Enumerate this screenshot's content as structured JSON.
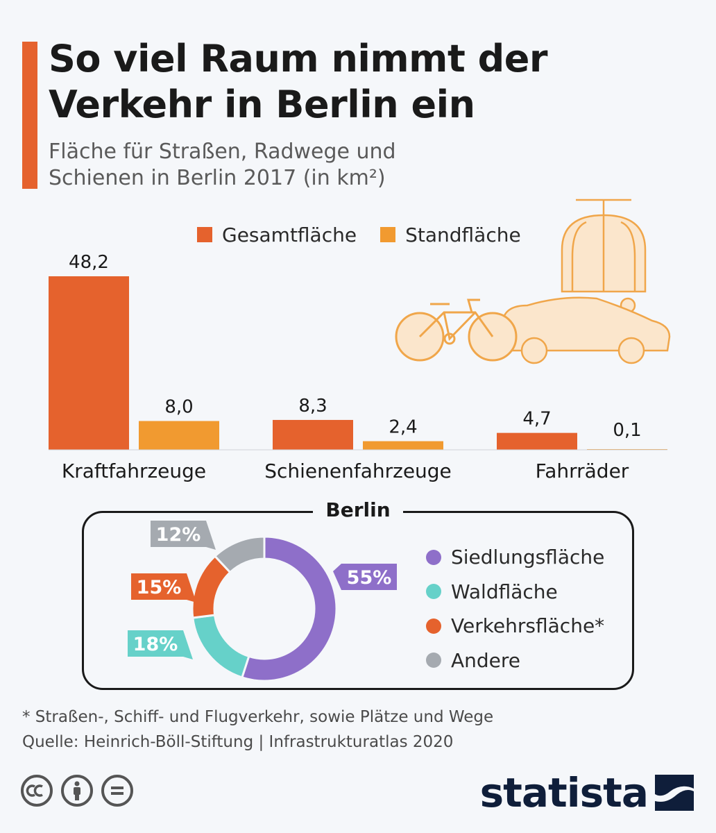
{
  "header": {
    "title_line1": "So viel Raum nimmt der",
    "title_line2": "Verkehr in Berlin ein",
    "subtitle_line1": "Fläche für Straßen, Radwege und",
    "subtitle_line2": "Schienen in Berlin 2017 (in km²)"
  },
  "colors": {
    "gesamt": "#e5622d",
    "stand": "#f19a30",
    "siedlung": "#8e6fc9",
    "wald": "#66d1c9",
    "verkehr": "#e5622d",
    "andere": "#a5aab0",
    "illustration": "#f0a64a"
  },
  "chart_data": [
    {
      "type": "bar",
      "categories": [
        "Kraftfahrzeuge",
        "Schienenfahrzeuge",
        "Fahrräder"
      ],
      "series": [
        {
          "name": "Gesamtfläche",
          "values": [
            48.2,
            8.3,
            4.7
          ],
          "labels": [
            "48,2",
            "8,3",
            "4,7"
          ]
        },
        {
          "name": "Standfläche",
          "values": [
            8.0,
            2.4,
            0.1
          ],
          "labels": [
            "8,0",
            "2,4",
            "0,1"
          ]
        }
      ],
      "legend_position": "top",
      "grid": false
    },
    {
      "type": "pie",
      "title": "Berlin",
      "slices": [
        {
          "name": "Siedlungsfläche",
          "value": 55,
          "label": "55%"
        },
        {
          "name": "Waldfläche",
          "value": 18,
          "label": "18%"
        },
        {
          "name": "Verkehrsfläche*",
          "value": 15,
          "label": "15%"
        },
        {
          "name": "Andere",
          "value": 12,
          "label": "12%"
        }
      ],
      "legend_position": "right"
    }
  ],
  "footer": {
    "note": "* Straßen-, Schiff- und Flugverkehr, sowie Plätze und Wege",
    "source": "Quelle: Heinrich-Böll-Stiftung | Infrastrukturatlas 2020"
  },
  "brand": {
    "name": "statista"
  },
  "icons": [
    "cc-icon",
    "by-icon",
    "nd-icon",
    "statista-logo-icon",
    "tram-icon",
    "car-icon",
    "bicycle-icon"
  ]
}
